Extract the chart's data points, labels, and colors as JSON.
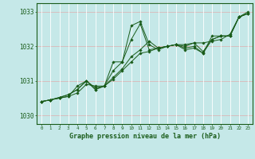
{
  "title": "Graphe pression niveau de la mer (hPa)",
  "bg_color": "#c5e8e8",
  "line_color": "#1a5c1a",
  "grid_color_h": "#dbb8b8",
  "grid_color_v": "#ffffff",
  "xlim": [
    -0.5,
    23.5
  ],
  "ylim": [
    1029.75,
    1033.25
  ],
  "yticks": [
    1030,
    1031,
    1032,
    1033
  ],
  "xticks": [
    0,
    1,
    2,
    3,
    4,
    5,
    6,
    7,
    8,
    9,
    10,
    11,
    12,
    13,
    14,
    15,
    16,
    17,
    18,
    19,
    20,
    21,
    22,
    23
  ],
  "series": [
    [
      1030.4,
      1030.45,
      1030.5,
      1030.55,
      1030.65,
      1030.9,
      1030.85,
      1030.85,
      1031.05,
      1031.3,
      1031.55,
      1031.8,
      1031.85,
      1031.95,
      1032.0,
      1032.05,
      1032.05,
      1032.1,
      1032.1,
      1032.15,
      1032.2,
      1032.35,
      1032.85,
      1032.95
    ],
    [
      1030.4,
      1030.45,
      1030.5,
      1030.55,
      1030.85,
      1031.0,
      1030.8,
      1030.85,
      1031.3,
      1031.55,
      1032.6,
      1032.72,
      1032.05,
      1031.9,
      1032.0,
      1032.05,
      1031.9,
      1031.95,
      1031.8,
      1032.2,
      1032.3,
      1032.3,
      1032.85,
      1032.95
    ],
    [
      1030.4,
      1030.45,
      1030.52,
      1030.6,
      1030.75,
      1031.0,
      1030.75,
      1030.85,
      1031.1,
      1031.35,
      1031.7,
      1031.9,
      1032.15,
      1031.95,
      1032.0,
      1032.05,
      1031.95,
      1032.0,
      1031.8,
      1032.3,
      1032.3,
      1032.3,
      1032.85,
      1032.95
    ],
    [
      1030.4,
      1030.45,
      1030.52,
      1030.6,
      1030.75,
      1031.0,
      1030.75,
      1030.85,
      1031.55,
      1031.55,
      1032.2,
      1032.65,
      1031.9,
      1031.95,
      1032.0,
      1032.05,
      1032.0,
      1032.1,
      1031.85,
      1032.2,
      1032.3,
      1032.3,
      1032.85,
      1033.0
    ]
  ]
}
